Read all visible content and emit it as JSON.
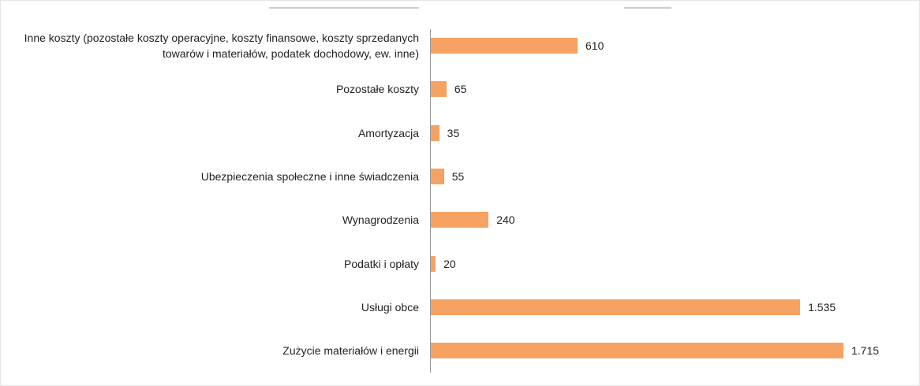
{
  "chart_data": {
    "type": "bar",
    "orientation": "horizontal",
    "categories": [
      "Inne koszty (pozostałe koszty operacyjne, koszty finansowe, koszty sprzedanych towarów i materiałów, podatek dochodowy, ew. inne)",
      "Pozostałe koszty",
      "Amortyzacja",
      "Ubezpieczenia społeczne i inne świadczenia",
      "Wynagrodzenia",
      "Podatki i opłaty",
      "Usługi obce",
      "Zużycie materiałów i energii"
    ],
    "values": [
      610,
      65,
      35,
      55,
      240,
      20,
      1535,
      1715
    ],
    "value_labels": [
      "610",
      "65",
      "35",
      "55",
      "240",
      "20",
      "1.535",
      "1.715"
    ],
    "color": "#f5a263"
  }
}
